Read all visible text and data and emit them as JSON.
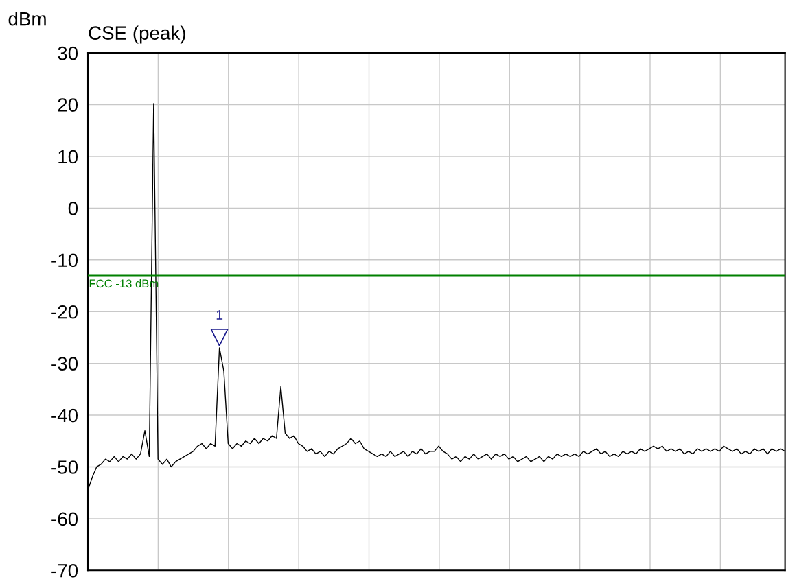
{
  "chart_data": {
    "type": "line",
    "title": "CSE (peak)",
    "ylabel": "dBm",
    "categories": [
      null,
      null,
      null,
      null,
      null,
      null,
      null,
      null,
      null,
      null,
      null,
      null,
      null,
      null,
      null,
      null,
      null,
      null,
      null,
      null,
      null,
      null,
      null,
      null,
      null,
      null,
      null,
      null,
      null,
      null,
      null,
      null,
      null,
      null,
      null,
      null,
      null,
      null,
      null,
      null,
      null,
      null,
      null,
      null,
      null,
      null,
      null,
      null,
      null,
      null,
      null,
      null,
      null,
      null,
      null,
      null,
      null,
      null,
      null,
      null,
      null,
      null,
      null,
      null,
      null,
      null,
      null,
      null,
      null,
      null,
      null,
      null,
      null,
      null,
      null,
      null,
      null,
      null,
      null,
      null,
      null,
      null,
      null,
      null,
      null,
      null,
      null,
      null,
      null,
      null,
      null,
      null,
      null,
      null,
      null,
      null,
      null,
      null,
      null,
      null,
      null,
      null,
      null,
      null,
      null,
      null,
      null,
      null,
      null,
      null,
      null,
      null,
      null,
      null,
      null,
      null,
      null,
      null,
      null,
      null,
      null,
      null,
      null,
      null,
      null,
      null,
      null,
      null,
      null,
      null,
      null,
      null,
      null,
      null,
      null,
      null,
      null,
      null,
      null,
      null,
      null,
      null,
      null,
      null,
      null,
      null,
      null,
      null,
      null,
      null,
      null,
      null,
      null,
      null,
      null,
      null,
      null,
      null,
      null,
      null
    ],
    "series": [
      {
        "color": "#000000",
        "values": [
          -54.5,
          -52,
          -50,
          -49.5,
          -48.5,
          -49,
          -48,
          -49,
          -48,
          -48.5,
          -47.5,
          -48.5,
          -47.5,
          -43,
          -48,
          20.2,
          -48.5,
          -49.5,
          -48.5,
          -50,
          -49,
          -48.5,
          -48,
          -47.5,
          -47,
          -46,
          -45.5,
          -46.5,
          -45.5,
          -46,
          -27,
          -31.5,
          -45.5,
          -46.5,
          -45.5,
          -46,
          -45,
          -45.5,
          -44.5,
          -45.5,
          -44.5,
          -45,
          -44,
          -44.5,
          -34.5,
          -43.5,
          -44.5,
          -44,
          -45.5,
          -46,
          -47,
          -46.5,
          -47.5,
          -47,
          -48,
          -47,
          -47.5,
          -46.5,
          -46,
          -45.5,
          -44.5,
          -45.5,
          -45,
          -46.5,
          -47,
          -47.5,
          -48,
          -47.5,
          -48,
          -47,
          -48,
          -47.5,
          -47,
          -48,
          -47,
          -47.5,
          -46.5,
          -47.5,
          -47,
          -47,
          -46,
          -47,
          -47.5,
          -48.5,
          -48,
          -49,
          -48,
          -48.5,
          -47.5,
          -48.5,
          -48,
          -47.5,
          -48.5,
          -47.5,
          -48,
          -47.5,
          -48.5,
          -48,
          -49,
          -48.5,
          -48,
          -49,
          -48.5,
          -48,
          -49,
          -48,
          -48.5,
          -47.5,
          -48,
          -47.5,
          -48,
          -47.5,
          -48,
          -47,
          -47.5,
          -47,
          -46.5,
          -47.5,
          -47,
          -48,
          -47.5,
          -48,
          -47,
          -47.5,
          -47,
          -47.5,
          -46.5,
          -47,
          -46.5,
          -46,
          -46.5,
          -46,
          -47,
          -46.5,
          -47,
          -46.5,
          -47.5,
          -47,
          -47.5,
          -46.5,
          -47,
          -46.5,
          -47,
          -46.5,
          -47,
          -46,
          -46.5,
          -47,
          -46.5,
          -47.5,
          -47,
          -47.5,
          -46.5,
          -47,
          -46.5,
          -47.5,
          -46.5,
          -47,
          -46.5,
          -47
        ]
      },
      {
        "type": "scatter",
        "marker": "triangle",
        "color": "#1a1a8c",
        "values": [
          null,
          null,
          null,
          null,
          null,
          null,
          null,
          null,
          null,
          null,
          null,
          null,
          null,
          null,
          null,
          null,
          null,
          null,
          null,
          null,
          null,
          null,
          null,
          null,
          null,
          null,
          null,
          null,
          null,
          null,
          -25,
          null,
          null,
          null,
          null,
          null,
          null,
          null,
          null,
          null,
          null,
          null,
          null,
          null,
          null,
          null,
          null,
          null,
          null,
          null,
          null,
          null,
          null,
          null,
          null,
          null,
          null,
          null,
          null,
          null,
          null,
          null,
          null,
          null,
          null,
          null,
          null,
          null,
          null,
          null,
          null,
          null,
          null,
          null,
          null,
          null,
          null,
          null,
          null,
          null,
          null,
          null,
          null,
          null,
          null,
          null,
          null,
          null,
          null,
          null,
          null,
          null,
          null,
          null,
          null,
          null,
          null,
          null,
          null,
          null,
          null,
          null,
          null,
          null,
          null,
          null,
          null,
          null,
          null,
          null,
          null,
          null,
          null,
          null,
          null,
          null,
          null,
          null,
          null,
          null,
          null,
          null,
          null,
          null,
          null,
          null,
          null,
          null,
          null,
          null,
          null,
          null,
          null,
          null,
          null,
          null,
          null,
          null,
          null,
          null,
          null,
          null,
          null,
          null,
          null,
          null,
          null,
          null,
          null,
          null,
          null,
          null,
          null,
          null,
          null,
          null,
          null,
          null,
          null,
          null
        ]
      }
    ],
    "annotations": [
      "1"
    ],
    "ylim": [
      -70,
      30
    ],
    "yticks": [
      -70,
      -60,
      -50,
      -40,
      -30,
      -20,
      -10,
      0,
      10,
      20,
      30
    ],
    "ref_lines": [
      {
        "axis": "y",
        "value": -13,
        "label": "FCC -13 dBm",
        "color": "#008000"
      }
    ],
    "grid": true,
    "legend": false,
    "tick_labels": "y"
  }
}
